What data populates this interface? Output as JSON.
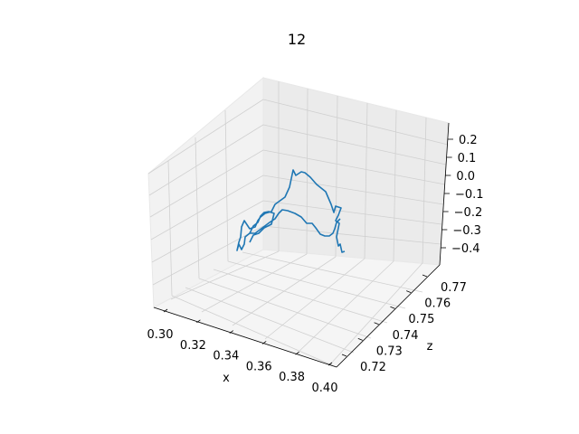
{
  "chart_data": {
    "type": "line3d",
    "title": "12",
    "xlabel": "x",
    "ylabel": "",
    "zlabel": "z",
    "x_ticks": [
      "0.30",
      "0.32",
      "0.34",
      "0.36",
      "0.38",
      "0.40"
    ],
    "z_ticks": [
      "0.72",
      "0.73",
      "0.74",
      "0.75",
      "0.76",
      "0.77"
    ],
    "y_ticks": [
      "−0.4",
      "−0.3",
      "−0.2",
      "−0.1",
      "0.0",
      "0.1",
      "0.2"
    ],
    "grid": true,
    "colors": {
      "line": "#1f77b4",
      "pane": "#f2f2f2",
      "grid": "#d0d0d0"
    }
  }
}
